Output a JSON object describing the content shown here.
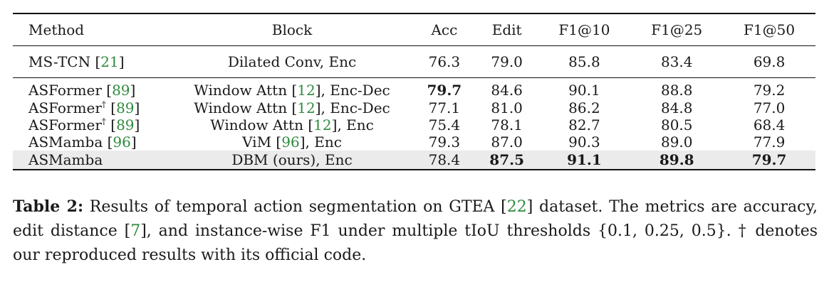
{
  "table": {
    "headers": [
      "Method",
      "Block",
      "Acc",
      "Edit",
      "F1@10",
      "F1@25",
      "F1@50"
    ],
    "rows": [
      {
        "method": "MS-TCN",
        "method_sup": "",
        "method_cite": "21",
        "block_pre": "Dilated Conv, Enc",
        "block_cite": "",
        "block_post": "",
        "acc": "76.3",
        "edit": "79.0",
        "f10": "85.8",
        "f25": "83.4",
        "f50": "69.8"
      },
      {
        "method": "ASFormer",
        "method_sup": "",
        "method_cite": "89",
        "block_pre": "Window Attn",
        "block_cite": "12",
        "block_post": ", Enc-Dec",
        "acc": "79.7",
        "edit": "84.6",
        "f10": "90.1",
        "f25": "88.8",
        "f50": "79.2"
      },
      {
        "method": "ASFormer",
        "method_sup": "†",
        "method_cite": "89",
        "block_pre": "Window Attn",
        "block_cite": "12",
        "block_post": ", Enc-Dec",
        "acc": "77.1",
        "edit": "81.0",
        "f10": "86.2",
        "f25": "84.8",
        "f50": "77.0"
      },
      {
        "method": "ASFormer",
        "method_sup": "†",
        "method_cite": "89",
        "block_pre": "Window Attn",
        "block_cite": "12",
        "block_post": ", Enc",
        "acc": "75.4",
        "edit": "78.1",
        "f10": "82.7",
        "f25": "80.5",
        "f50": "68.4"
      },
      {
        "method": "ASMamba",
        "method_sup": "",
        "method_cite": "96",
        "block_pre": "ViM",
        "block_cite": "96",
        "block_post": ", Enc",
        "acc": "79.3",
        "edit": "87.0",
        "f10": "90.3",
        "f25": "89.0",
        "f50": "77.9"
      },
      {
        "method": "ASMamba",
        "method_sup": "",
        "method_cite": "",
        "block_pre": "DBM (ours), Enc",
        "block_cite": "",
        "block_post": "",
        "acc": "78.4",
        "edit": "87.5",
        "f10": "91.1",
        "f25": "89.8",
        "f50": "79.7"
      }
    ]
  },
  "caption": {
    "label": "Table 2:",
    "text_1": " Results of temporal action segmentation on GTEA [",
    "cite_1": "22",
    "text_2": "] dataset. The metrics are accuracy, edit distance [",
    "cite_2": "7",
    "text_3": "], and instance-wise F1 under multiple tIoU thresholds {0.1, 0.25, 0.5}. † denotes our reproduced results with its official code."
  },
  "colors": {
    "citation": "#2e8b3e",
    "highlight_row": "#ebebeb"
  }
}
